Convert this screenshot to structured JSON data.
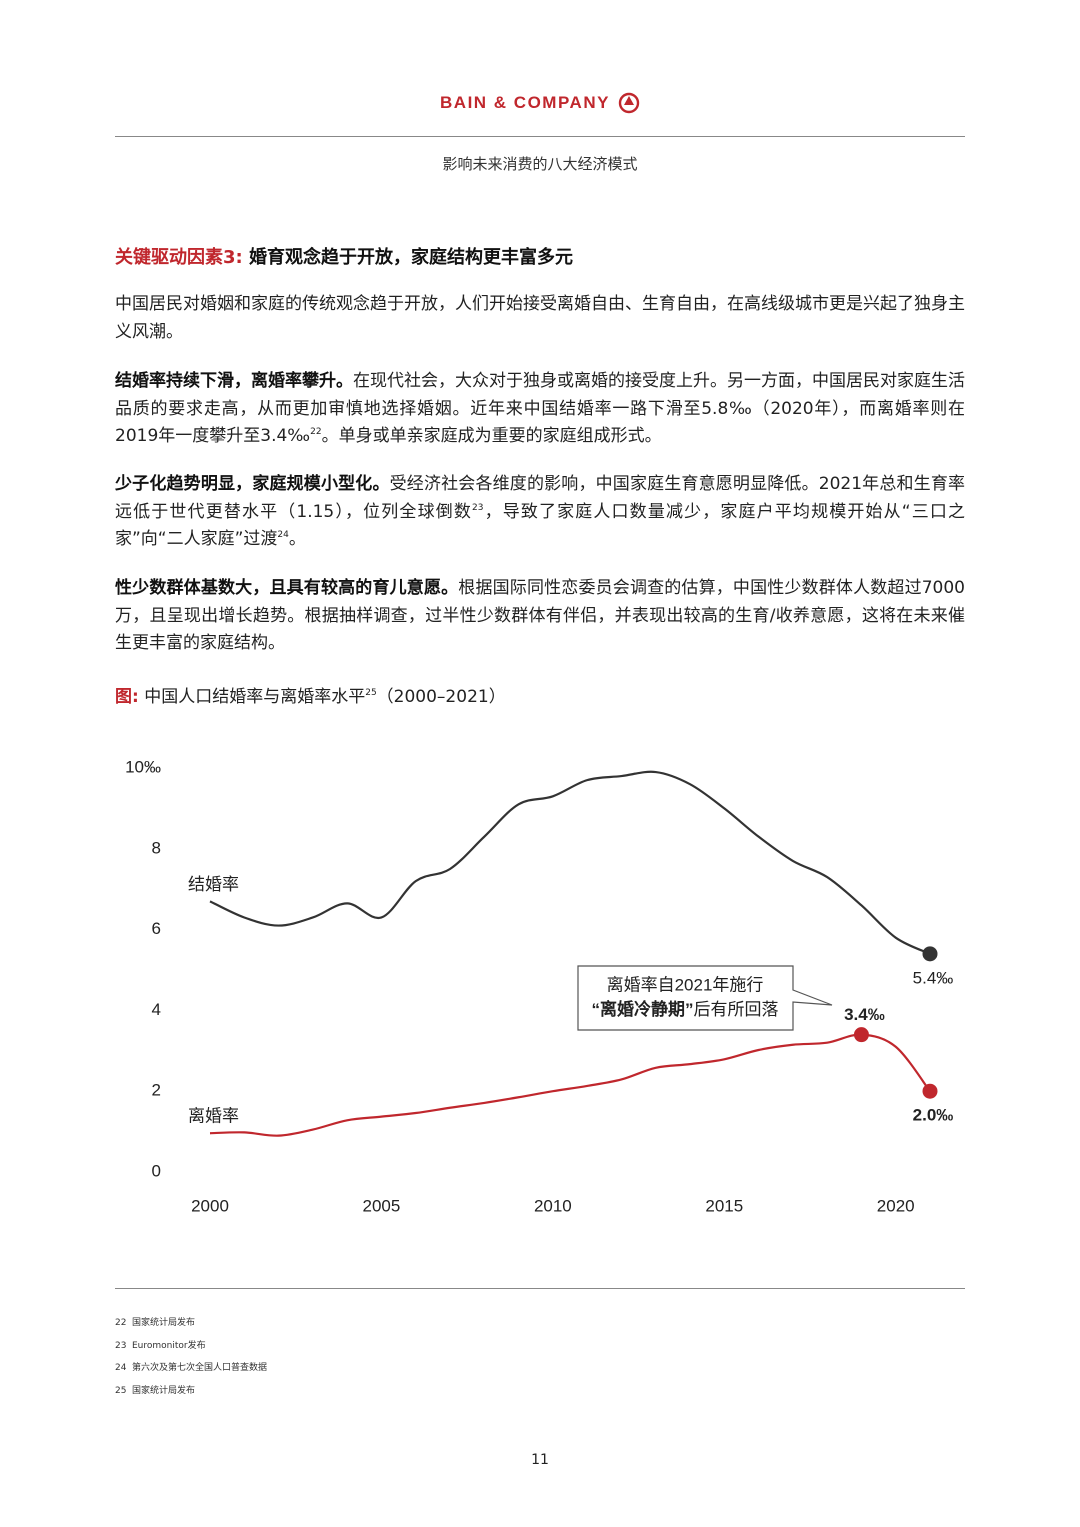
{
  "header": {
    "brand": "BAIN & COMPANY",
    "subtitle": "影响未来消费的八大经济模式"
  },
  "section": {
    "label": "关键驱动因素3:",
    "title": "婚育观念趋于开放，家庭结构更丰富多元"
  },
  "paragraphs": [
    [
      {
        "t": "中国居民对婚姻和家庭的传统观念趋于开放，人们开始接受离婚自由、生育自由，在高线级城市更是兴起了独身主义风潮。"
      }
    ],
    [
      {
        "b": "结婚率持续下滑，离婚率攀升。"
      },
      {
        "t": "在现代社会，大众对于独身或离婚的接受度上升。另一方面，中国居民对家庭生活品质的要求走高，从而更加审慎地选择婚姻。近年来中国结婚率一路下滑至5.8‰（2020年），而离婚率则在2019年一度攀升至3.4‰"
      },
      {
        "sup": "22"
      },
      {
        "t": "。单身或单亲家庭成为重要的家庭组成形式。"
      }
    ],
    [
      {
        "b": "少子化趋势明显，家庭规模小型化。"
      },
      {
        "t": "受经济社会各维度的影响，中国家庭生育意愿明显降低。2021年总和生育率远低于世代更替水平（1.15），位列全球倒数"
      },
      {
        "sup": "23"
      },
      {
        "t": "，导致了家庭人口数量减少，家庭户平均规模开始从“三口之家”向“二人家庭”过渡"
      },
      {
        "sup": "24"
      },
      {
        "t": "。"
      }
    ],
    [
      {
        "b": "性少数群体基数大，且具有较高的育儿意愿。"
      },
      {
        "t": "根据国际同性恋委员会调查的估算，中国性少数群体人数超过7000万，且呈现出增长趋势。根据抽样调查，过半性少数群体有伴侣，并表现出较高的生育/收养意愿，这将在未来催生更丰富的家庭结构。"
      }
    ]
  ],
  "figure": {
    "label": "图:",
    "title": "中国人口结婚率与离婚率水平",
    "sup": "25",
    "range": "（2000–2021）"
  },
  "chart_data": {
    "type": "line",
    "x": [
      2000,
      2001,
      2002,
      2003,
      2004,
      2005,
      2006,
      2007,
      2008,
      2009,
      2010,
      2011,
      2012,
      2013,
      2014,
      2015,
      2016,
      2017,
      2018,
      2019,
      2020,
      2021
    ],
    "xlim": [
      2000,
      2021
    ],
    "xticks": [
      2000,
      2005,
      2010,
      2015,
      2020
    ],
    "ylim": [
      0,
      10
    ],
    "yticks": [
      0,
      2,
      4,
      6,
      8,
      {
        "value": 10,
        "label": "10‰"
      }
    ],
    "grid": false,
    "series": [
      {
        "name": "结婚率",
        "color": "#333333",
        "values": [
          6.7,
          6.3,
          6.1,
          6.3,
          6.65,
          6.3,
          7.2,
          7.5,
          8.3,
          9.1,
          9.3,
          9.7,
          9.8,
          9.9,
          9.6,
          9.0,
          8.3,
          7.7,
          7.3,
          6.6,
          5.8,
          5.4
        ],
        "value_labels": [
          null,
          null,
          null,
          null,
          null,
          null,
          null,
          null,
          null,
          null,
          null,
          null,
          null,
          null,
          null,
          null,
          null,
          null,
          null,
          null,
          null,
          "5.4‰"
        ]
      },
      {
        "name": "离婚率",
        "color": "#c0272d",
        "values": [
          0.96,
          0.98,
          0.9,
          1.05,
          1.28,
          1.37,
          1.46,
          1.59,
          1.71,
          1.85,
          2.0,
          2.13,
          2.29,
          2.58,
          2.67,
          2.79,
          3.02,
          3.15,
          3.2,
          3.4,
          3.1,
          2.0
        ],
        "value_labels": [
          null,
          null,
          null,
          null,
          null,
          null,
          null,
          null,
          null,
          null,
          null,
          null,
          null,
          null,
          null,
          null,
          null,
          null,
          null,
          "3.4‰",
          null,
          "2.0‰"
        ]
      }
    ],
    "annotation": {
      "line1": "离婚率自2021年施行",
      "line2_bold": "“离婚冷静期”",
      "line2": "后有所回落"
    }
  },
  "footnotes": [
    {
      "num": "22",
      "text": "国家统计局发布"
    },
    {
      "num": "23",
      "text": "Euromonitor发布"
    },
    {
      "num": "24",
      "text": "第六次及第七次全国人口普查数据"
    },
    {
      "num": "25",
      "text": "国家统计局发布"
    }
  ],
  "page_number": "11"
}
